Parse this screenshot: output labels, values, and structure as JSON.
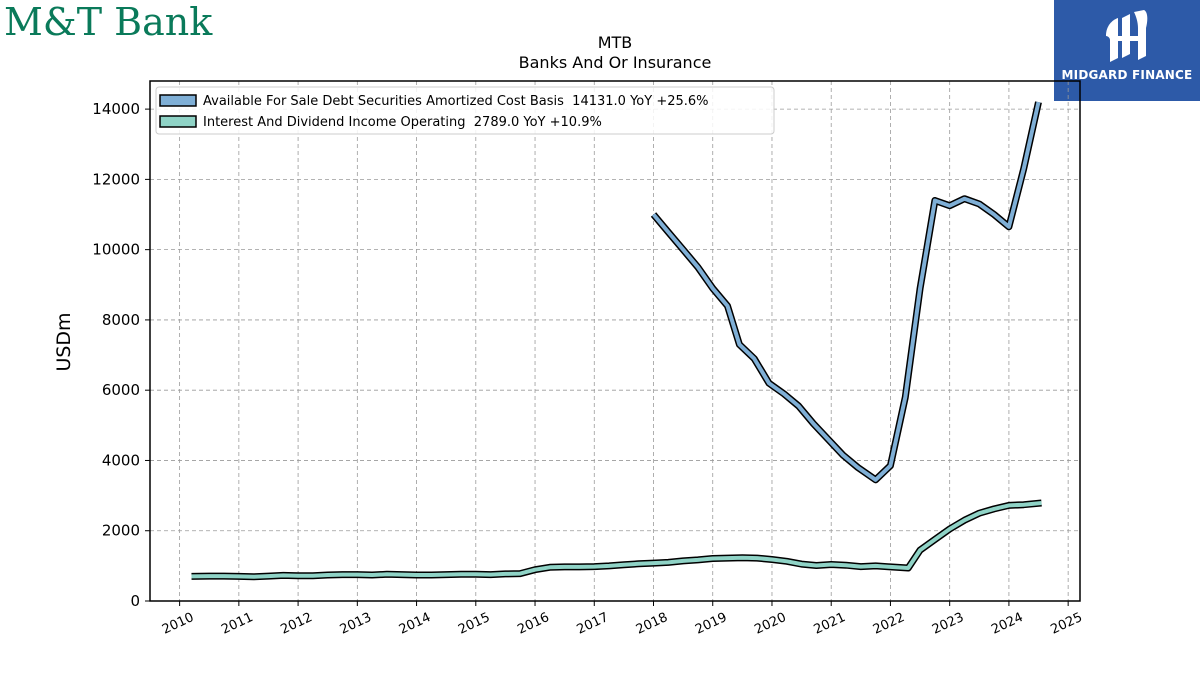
{
  "header": {
    "bank_logo": "M&T Bank",
    "watermark_logo": "MIDGARD FINANCE"
  },
  "colors": {
    "series_1": "#7fafd6",
    "series_2": "#8fd3c6",
    "bank_brand": "#0a7a5a",
    "watermark_bg": "#2d5aa8"
  },
  "chart_data": {
    "type": "line",
    "title": "MTB",
    "subtitle": "Banks And Or Insurance",
    "xlabel": "",
    "ylabel": "USDm",
    "xlim": [
      2009.5,
      2025.2
    ],
    "ylim": [
      0,
      14800
    ],
    "x_ticks": [
      2010,
      2011,
      2012,
      2013,
      2014,
      2015,
      2016,
      2017,
      2018,
      2019,
      2020,
      2021,
      2022,
      2023,
      2024,
      2025
    ],
    "x_tick_labels": [
      "2010",
      "2011",
      "2012",
      "2013",
      "2014",
      "2015",
      "2016",
      "2017",
      "2018",
      "2019",
      "2020",
      "2021",
      "2022",
      "2023",
      "2024",
      "2025"
    ],
    "y_ticks": [
      0,
      2000,
      4000,
      6000,
      8000,
      10000,
      12000,
      14000
    ],
    "y_tick_labels": [
      "0",
      "2000",
      "4000",
      "6000",
      "8000",
      "10000",
      "12000",
      "14000"
    ],
    "grid": true,
    "legend_position": "top-left",
    "series": [
      {
        "name": "Available For Sale Debt Securities Amortized Cost Basis  14131.0 YoY +25.6%",
        "color": "#7fafd6",
        "points": [
          [
            2018.0,
            11000
          ],
          [
            2018.25,
            10500
          ],
          [
            2018.5,
            10000
          ],
          [
            2018.75,
            9500
          ],
          [
            2019.0,
            8900
          ],
          [
            2019.25,
            8400
          ],
          [
            2019.45,
            7300
          ],
          [
            2019.7,
            6900
          ],
          [
            2019.95,
            6200
          ],
          [
            2020.2,
            5900
          ],
          [
            2020.45,
            5550
          ],
          [
            2020.7,
            5050
          ],
          [
            2020.95,
            4600
          ],
          [
            2021.2,
            4150
          ],
          [
            2021.45,
            3800
          ],
          [
            2021.75,
            3450
          ],
          [
            2022.0,
            3850
          ],
          [
            2022.25,
            5800
          ],
          [
            2022.5,
            8900
          ],
          [
            2022.75,
            11400
          ],
          [
            2023.0,
            11250
          ],
          [
            2023.25,
            11450
          ],
          [
            2023.5,
            11300
          ],
          [
            2023.75,
            11000
          ],
          [
            2024.0,
            10650
          ],
          [
            2024.25,
            12300
          ],
          [
            2024.5,
            14200
          ]
        ]
      },
      {
        "name": "Interest And Dividend Income Operating  2789.0 YoY +10.9%",
        "color": "#8fd3c6",
        "points": [
          [
            2010.2,
            700
          ],
          [
            2010.5,
            710
          ],
          [
            2010.75,
            710
          ],
          [
            2011.0,
            700
          ],
          [
            2011.25,
            690
          ],
          [
            2011.5,
            710
          ],
          [
            2011.75,
            730
          ],
          [
            2012.0,
            720
          ],
          [
            2012.25,
            720
          ],
          [
            2012.5,
            740
          ],
          [
            2012.75,
            750
          ],
          [
            2013.0,
            750
          ],
          [
            2013.25,
            740
          ],
          [
            2013.5,
            760
          ],
          [
            2013.75,
            750
          ],
          [
            2014.0,
            740
          ],
          [
            2014.25,
            740
          ],
          [
            2014.5,
            750
          ],
          [
            2014.75,
            760
          ],
          [
            2015.0,
            760
          ],
          [
            2015.25,
            750
          ],
          [
            2015.5,
            770
          ],
          [
            2015.75,
            780
          ],
          [
            2016.0,
            890
          ],
          [
            2016.25,
            960
          ],
          [
            2016.5,
            970
          ],
          [
            2016.75,
            970
          ],
          [
            2017.0,
            980
          ],
          [
            2017.25,
            1000
          ],
          [
            2017.5,
            1030
          ],
          [
            2017.75,
            1060
          ],
          [
            2018.0,
            1080
          ],
          [
            2018.25,
            1100
          ],
          [
            2018.5,
            1140
          ],
          [
            2018.75,
            1170
          ],
          [
            2019.0,
            1210
          ],
          [
            2019.25,
            1220
          ],
          [
            2019.5,
            1230
          ],
          [
            2019.75,
            1220
          ],
          [
            2020.0,
            1180
          ],
          [
            2020.25,
            1130
          ],
          [
            2020.5,
            1050
          ],
          [
            2020.75,
            1010
          ],
          [
            2021.0,
            1040
          ],
          [
            2021.25,
            1020
          ],
          [
            2021.5,
            980
          ],
          [
            2021.75,
            1000
          ],
          [
            2022.0,
            970
          ],
          [
            2022.3,
            940
          ],
          [
            2022.5,
            1450
          ],
          [
            2022.75,
            1750
          ],
          [
            2023.0,
            2050
          ],
          [
            2023.25,
            2300
          ],
          [
            2023.5,
            2500
          ],
          [
            2023.75,
            2620
          ],
          [
            2024.0,
            2720
          ],
          [
            2024.25,
            2740
          ],
          [
            2024.55,
            2789
          ]
        ]
      }
    ]
  }
}
